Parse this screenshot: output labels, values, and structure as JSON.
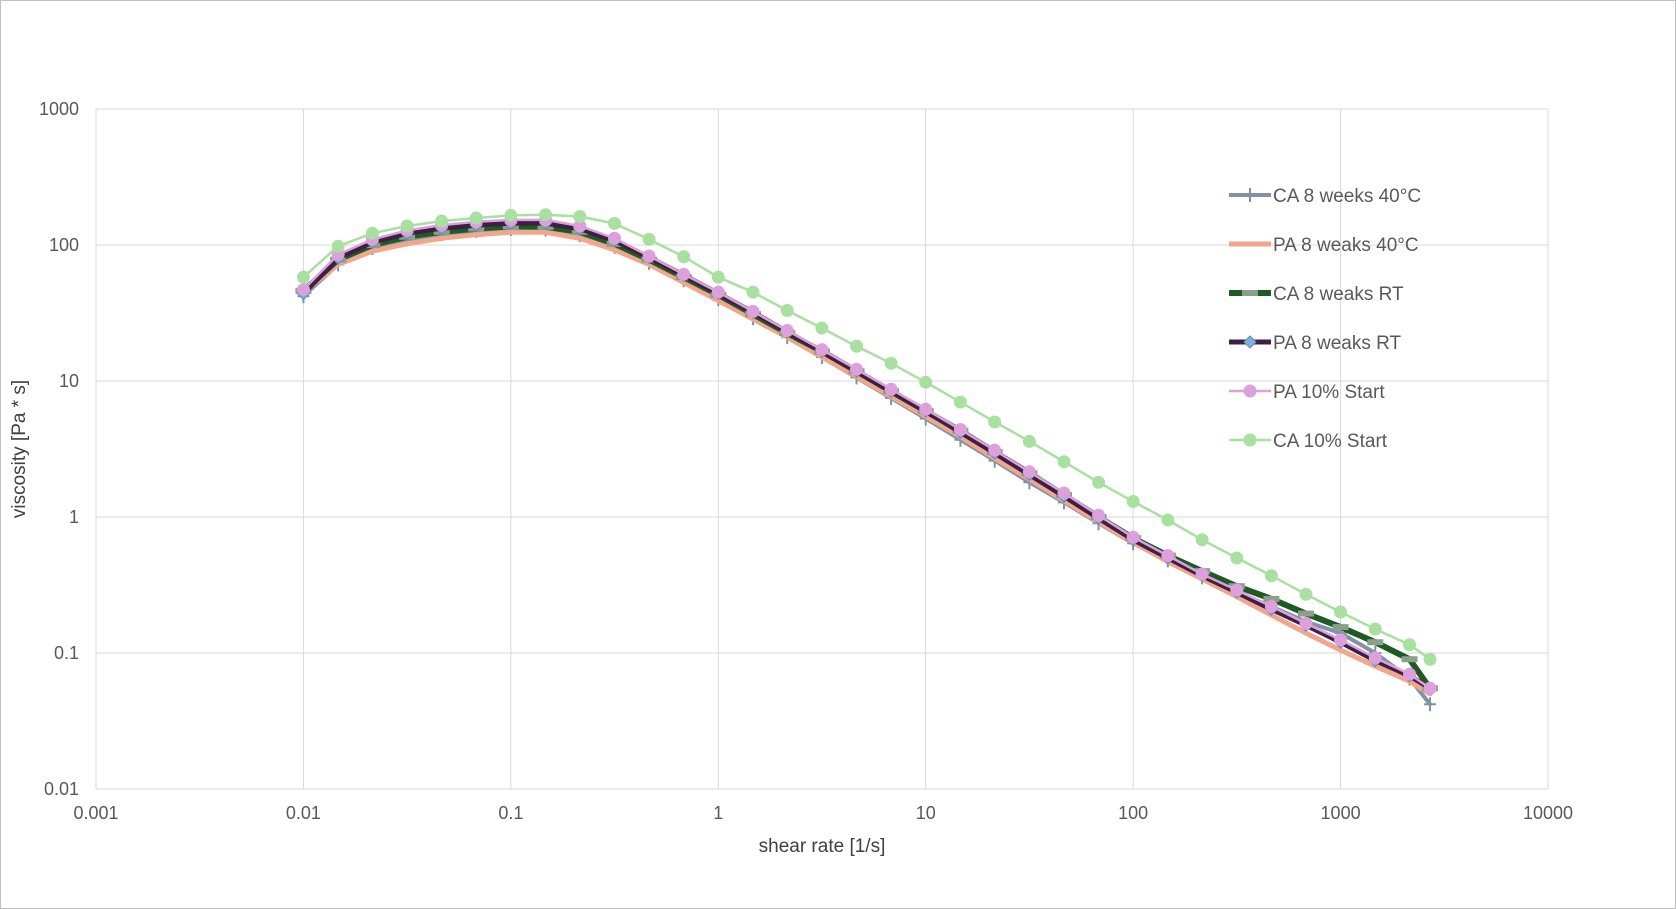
{
  "chart_data": {
    "type": "line",
    "xlabel": "shear rate [1/s]",
    "ylabel": "viscosity [Pa * s]",
    "xscale": "log",
    "yscale": "log",
    "xlim": [
      0.001,
      10000
    ],
    "ylim": [
      0.01,
      1000
    ],
    "x_ticks": [
      "0.001",
      "0.01",
      "0.1",
      "1",
      "10",
      "100",
      "1000",
      "10000"
    ],
    "y_ticks": [
      "0.01",
      "0.1",
      "1",
      "10",
      "100",
      "1000"
    ],
    "grid": true,
    "legend_position": "right",
    "series": [
      {
        "name": "CA 8 weeks 40°C",
        "color": "#7f93a8",
        "marker": "plus",
        "x": [
          0.01,
          0.0147,
          0.0215,
          0.0316,
          0.0464,
          0.0681,
          0.1,
          0.147,
          0.215,
          0.316,
          0.464,
          0.681,
          1,
          1.47,
          2.15,
          3.16,
          4.64,
          6.81,
          10,
          14.7,
          21.5,
          31.6,
          46.4,
          68.1,
          100,
          147,
          215,
          316,
          464,
          681,
          1000,
          1470,
          2150,
          2700
        ],
        "y": [
          42,
          72,
          95,
          110,
          120,
          127,
          131,
          130,
          118,
          97,
          74,
          55,
          40,
          29,
          21,
          15,
          10.6,
          7.5,
          5.3,
          3.7,
          2.6,
          1.8,
          1.28,
          0.9,
          0.64,
          0.48,
          0.36,
          0.28,
          0.22,
          0.17,
          0.14,
          0.1,
          0.065,
          0.042
        ]
      },
      {
        "name": "PA 8 weaks 40°C",
        "color": "#f2a68c",
        "marker": "none",
        "x": [
          0.01,
          0.0147,
          0.0215,
          0.0316,
          0.0464,
          0.0681,
          0.1,
          0.147,
          0.215,
          0.316,
          0.464,
          0.681,
          1,
          1.47,
          2.15,
          3.16,
          4.64,
          6.81,
          10,
          14.7,
          21.5,
          31.6,
          46.4,
          68.1,
          100,
          147,
          215,
          316,
          464,
          681,
          1000,
          1470,
          2150,
          2700
        ],
        "y": [
          45,
          72,
          90,
          102,
          112,
          119,
          124,
          124,
          112,
          92,
          72,
          53,
          39,
          28.5,
          21,
          15,
          10.8,
          7.7,
          5.5,
          3.9,
          2.7,
          1.9,
          1.32,
          0.92,
          0.65,
          0.47,
          0.35,
          0.26,
          0.19,
          0.14,
          0.105,
          0.08,
          0.062,
          0.05
        ]
      },
      {
        "name": "CA 8 weaks RT",
        "color": "#1e5a22",
        "marker": "dash",
        "x": [
          0.01,
          0.0147,
          0.0215,
          0.0316,
          0.0464,
          0.0681,
          0.1,
          0.147,
          0.215,
          0.316,
          0.464,
          0.681,
          1,
          1.47,
          2.15,
          3.16,
          4.64,
          6.81,
          10,
          14.7,
          21.5,
          31.6,
          46.4,
          68.1,
          100,
          147,
          215,
          316,
          464,
          681,
          1000,
          1470,
          2150,
          2700
        ],
        "y": [
          46,
          78,
          100,
          115,
          125,
          132,
          137,
          136,
          125,
          102,
          78,
          58,
          43,
          31,
          22.5,
          16.5,
          11.8,
          8.4,
          6,
          4.3,
          3,
          2.1,
          1.45,
          1,
          0.7,
          0.52,
          0.4,
          0.31,
          0.25,
          0.195,
          0.155,
          0.12,
          0.09,
          0.055
        ]
      },
      {
        "name": "PA 8 weaks RT",
        "color": "#3d1f45",
        "marker": "diamond",
        "x": [
          0.01,
          0.0147,
          0.0215,
          0.0316,
          0.0464,
          0.0681,
          0.1,
          0.147,
          0.215,
          0.316,
          0.464,
          0.681,
          1,
          1.47,
          2.15,
          3.16,
          4.64,
          6.81,
          10,
          14.7,
          21.5,
          31.6,
          46.4,
          68.1,
          100,
          147,
          215,
          316,
          464,
          681,
          1000,
          1470,
          2150,
          2700
        ],
        "y": [
          44,
          80,
          105,
          122,
          133,
          140,
          145,
          145,
          132,
          108,
          81,
          60,
          44,
          32,
          23,
          16.5,
          11.8,
          8.4,
          6,
          4.2,
          2.95,
          2.05,
          1.42,
          0.98,
          0.68,
          0.5,
          0.37,
          0.28,
          0.21,
          0.16,
          0.12,
          0.088,
          0.068,
          0.055
        ]
      },
      {
        "name": "PA 10% Start",
        "color": "#dda0dd",
        "marker": "circle",
        "x": [
          0.01,
          0.0147,
          0.0215,
          0.0316,
          0.0464,
          0.0681,
          0.1,
          0.147,
          0.215,
          0.316,
          0.464,
          0.681,
          1,
          1.47,
          2.15,
          3.16,
          4.64,
          6.81,
          10,
          14.7,
          21.5,
          31.6,
          46.4,
          68.1,
          100,
          147,
          215,
          316,
          464,
          681,
          1000,
          1470,
          2150,
          2700
        ],
        "y": [
          47,
          85,
          110,
          128,
          140,
          148,
          153,
          153,
          138,
          112,
          83,
          61,
          45,
          32.5,
          23.5,
          17,
          12.2,
          8.7,
          6.2,
          4.4,
          3.1,
          2.15,
          1.5,
          1.03,
          0.71,
          0.52,
          0.38,
          0.29,
          0.22,
          0.165,
          0.125,
          0.092,
          0.07,
          0.055
        ]
      },
      {
        "name": "CA 10% Start",
        "color": "#a8e0a0",
        "marker": "circle",
        "x": [
          0.01,
          0.0147,
          0.0215,
          0.0316,
          0.0464,
          0.0681,
          0.1,
          0.147,
          0.215,
          0.316,
          0.464,
          0.681,
          1,
          1.47,
          2.15,
          3.16,
          4.64,
          6.81,
          10,
          14.7,
          21.5,
          31.6,
          46.4,
          68.1,
          100,
          147,
          215,
          316,
          464,
          681,
          1000,
          1470,
          2150,
          2700
        ],
        "y": [
          58,
          98,
          122,
          138,
          150,
          158,
          165,
          167,
          162,
          144,
          110,
          82,
          58,
          45,
          33,
          24.5,
          18,
          13.5,
          9.8,
          7,
          5,
          3.6,
          2.55,
          1.8,
          1.3,
          0.95,
          0.68,
          0.5,
          0.37,
          0.27,
          0.2,
          0.15,
          0.115,
          0.09
        ]
      }
    ]
  }
}
